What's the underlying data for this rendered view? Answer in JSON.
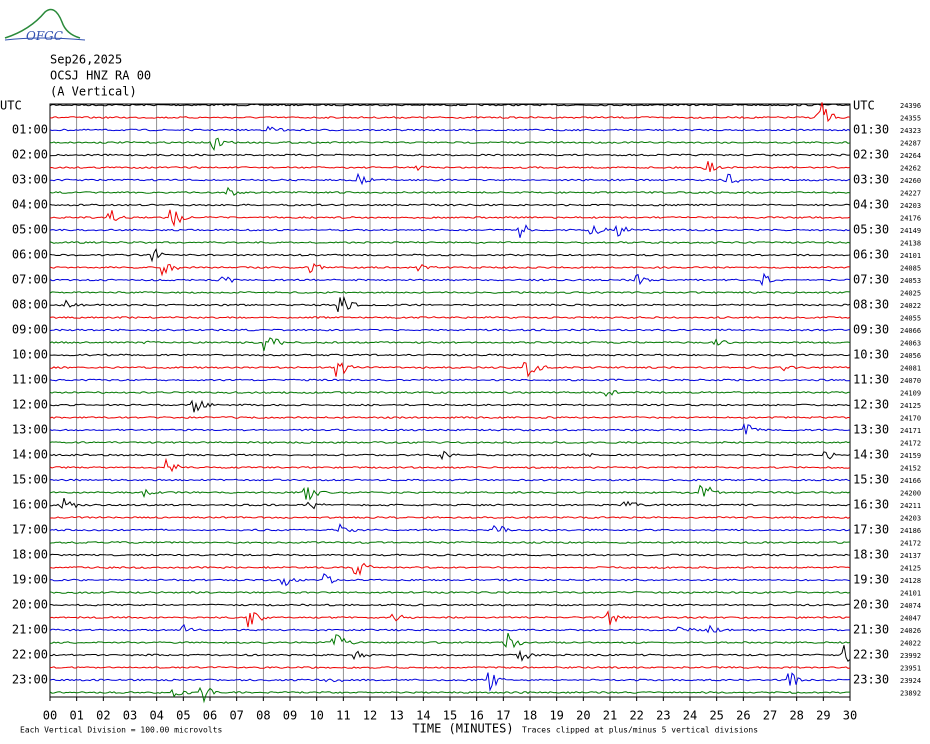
{
  "header": {
    "logo": "OFGC",
    "date": "Sep26,2025",
    "station": "OCSJ HNZ RA 00",
    "component": "(A Vertical)"
  },
  "left_labels": [
    "UTC",
    "01:00",
    "02:00",
    "03:00",
    "04:00",
    "05:00",
    "06:00",
    "07:00",
    "08:00",
    "09:00",
    "10:00",
    "11:00",
    "12:00",
    "13:00",
    "14:00",
    "15:00",
    "16:00",
    "17:00",
    "18:00",
    "19:00",
    "20:00",
    "21:00",
    "22:00",
    "23:00"
  ],
  "right_labels": [
    "UTC",
    "01:30",
    "02:30",
    "03:30",
    "04:30",
    "05:30",
    "06:30",
    "07:30",
    "08:30",
    "09:30",
    "10:30",
    "11:30",
    "12:30",
    "13:30",
    "14:30",
    "15:30",
    "16:30",
    "17:30",
    "18:30",
    "19:30",
    "20:30",
    "21:30",
    "22:30",
    "23:30"
  ],
  "right_values": [
    "24396",
    "24355",
    "24323",
    "24287",
    "24264",
    "24262",
    "24260",
    "24227",
    "24203",
    "24176",
    "24149",
    "24138",
    "24101",
    "24085",
    "24053",
    "24025",
    "24022",
    "24055",
    "24066",
    "24063",
    "24056",
    "24081",
    "24070",
    "24109",
    "24125",
    "24170",
    "24171",
    "24172",
    "24159",
    "24152",
    "24166",
    "24200",
    "24211",
    "24203",
    "24186",
    "24172",
    "24137",
    "24125",
    "24128",
    "24101",
    "24074",
    "24047",
    "24026",
    "24022",
    "23992",
    "23951",
    "23924",
    "23892"
  ],
  "x_ticks": [
    "00",
    "01",
    "02",
    "03",
    "04",
    "05",
    "06",
    "07",
    "08",
    "09",
    "10",
    "11",
    "12",
    "13",
    "14",
    "15",
    "16",
    "17",
    "18",
    "19",
    "20",
    "21",
    "22",
    "23",
    "24",
    "25",
    "26",
    "27",
    "28",
    "29",
    "30"
  ],
  "x_label": "TIME (MINUTES)",
  "footer_left": "Each Vertical Division =  100.00 microvolts",
  "footer_right": "Traces clipped at plus/minus 5 vertical divisions"
}
